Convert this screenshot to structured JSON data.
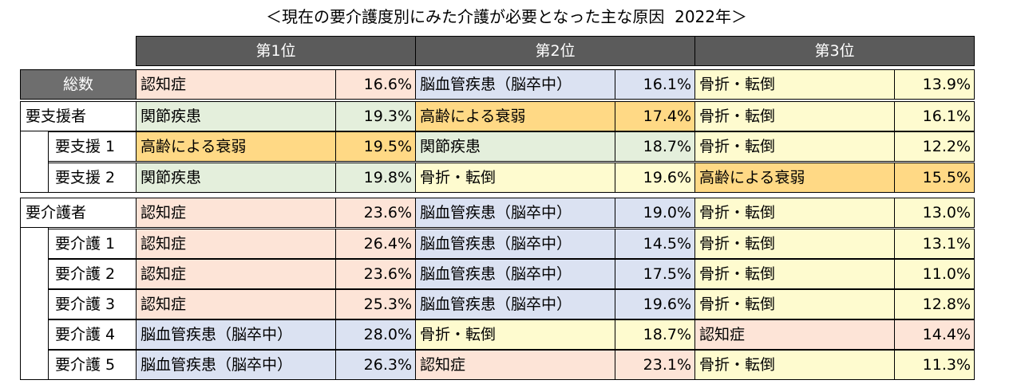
{
  "title": "＜現在の要介護度別にみた介護が必要となった主な原因  2022年＞",
  "headers": [
    "第1位",
    "第2位",
    "第3位"
  ],
  "colors": {
    "dementia": "#fde4d7",
    "stroke": "#dbe2f2",
    "fracture": "#fefbcf",
    "aging": "#ffd985",
    "joint": "#e4efdc",
    "header_bg": "#5b5b5b",
    "total_bg": "#6e6e6e"
  },
  "rows": [
    {
      "label": "総数",
      "cells": [
        {
          "name": "認知症",
          "pct": "16.6%",
          "cat": "dementia"
        },
        {
          "name": "脳血管疾患（脳卒中）",
          "pct": "16.1%",
          "cat": "stroke"
        },
        {
          "name": "骨折・転倒",
          "pct": "13.9%",
          "cat": "fracture"
        }
      ]
    },
    {
      "label": "要支援者",
      "cells": [
        {
          "name": "関節疾患",
          "pct": "19.3%",
          "cat": "joint"
        },
        {
          "name": "高齢による衰弱",
          "pct": "17.4%",
          "cat": "aging"
        },
        {
          "name": "骨折・転倒",
          "pct": "16.1%",
          "cat": "fracture"
        }
      ]
    },
    {
      "label": "要支援 1",
      "cells": [
        {
          "name": "高齢による衰弱",
          "pct": "19.5%",
          "cat": "aging"
        },
        {
          "name": "関節疾患",
          "pct": "18.7%",
          "cat": "joint"
        },
        {
          "name": "骨折・転倒",
          "pct": "12.2%",
          "cat": "fracture"
        }
      ]
    },
    {
      "label": "要支援 2",
      "cells": [
        {
          "name": "関節疾患",
          "pct": "19.8%",
          "cat": "joint"
        },
        {
          "name": "骨折・転倒",
          "pct": "19.6%",
          "cat": "fracture"
        },
        {
          "name": "高齢による衰弱",
          "pct": "15.5%",
          "cat": "aging"
        }
      ]
    },
    {
      "label": "要介護者",
      "cells": [
        {
          "name": "認知症",
          "pct": "23.6%",
          "cat": "dementia"
        },
        {
          "name": "脳血管疾患（脳卒中）",
          "pct": "19.0%",
          "cat": "stroke"
        },
        {
          "name": "骨折・転倒",
          "pct": "13.0%",
          "cat": "fracture"
        }
      ]
    },
    {
      "label": "要介護 1",
      "cells": [
        {
          "name": "認知症",
          "pct": "26.4%",
          "cat": "dementia"
        },
        {
          "name": "脳血管疾患（脳卒中）",
          "pct": "14.5%",
          "cat": "stroke"
        },
        {
          "name": "骨折・転倒",
          "pct": "13.1%",
          "cat": "fracture"
        }
      ]
    },
    {
      "label": "要介護 2",
      "cells": [
        {
          "name": "認知症",
          "pct": "23.6%",
          "cat": "dementia"
        },
        {
          "name": "脳血管疾患（脳卒中）",
          "pct": "17.5%",
          "cat": "stroke"
        },
        {
          "name": "骨折・転倒",
          "pct": "11.0%",
          "cat": "fracture"
        }
      ]
    },
    {
      "label": "要介護 3",
      "cells": [
        {
          "name": "認知症",
          "pct": "25.3%",
          "cat": "dementia"
        },
        {
          "name": "脳血管疾患（脳卒中）",
          "pct": "19.6%",
          "cat": "stroke"
        },
        {
          "name": "骨折・転倒",
          "pct": "12.8%",
          "cat": "fracture"
        }
      ]
    },
    {
      "label": "要介護 4",
      "cells": [
        {
          "name": "脳血管疾患（脳卒中）",
          "pct": "28.0%",
          "cat": "stroke"
        },
        {
          "name": "骨折・転倒",
          "pct": "18.7%",
          "cat": "fracture"
        },
        {
          "name": "認知症",
          "pct": "14.4%",
          "cat": "dementia"
        }
      ]
    },
    {
      "label": "要介護 5",
      "cells": [
        {
          "name": "脳血管疾患（脳卒中）",
          "pct": "26.3%",
          "cat": "stroke"
        },
        {
          "name": "認知症",
          "pct": "23.1%",
          "cat": "dementia"
        },
        {
          "name": "骨折・転倒",
          "pct": "11.3%",
          "cat": "fracture"
        }
      ]
    }
  ]
}
